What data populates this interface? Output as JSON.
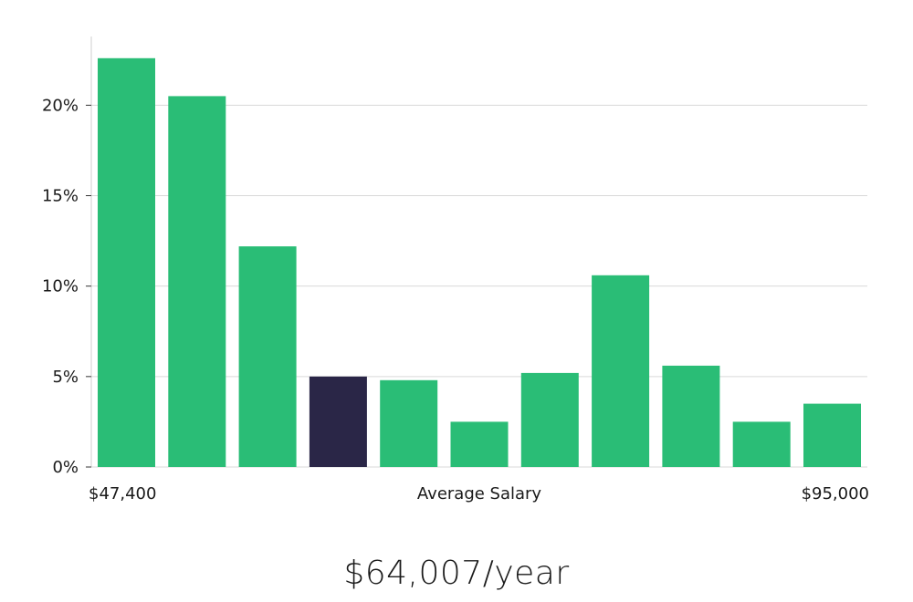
{
  "chart_data": {
    "type": "bar",
    "title": "",
    "xlabel": "Average Salary",
    "ylabel": "",
    "x_min_label": "$47,400",
    "x_max_label": "$95,000",
    "ylim": [
      0,
      23.8
    ],
    "yticks": [
      0,
      5,
      10,
      15,
      20
    ],
    "ytick_labels": [
      "0%",
      "5%",
      "10%",
      "15%",
      "20%"
    ],
    "values": [
      22.6,
      20.5,
      12.2,
      5.0,
      4.8,
      2.5,
      5.2,
      10.6,
      5.6,
      2.5,
      3.5
    ],
    "highlight_index": 3,
    "colors": {
      "bar": "#2abd76",
      "highlight": "#2a2647"
    },
    "grid": true
  },
  "summary": {
    "average_salary": "$64,007/year"
  }
}
